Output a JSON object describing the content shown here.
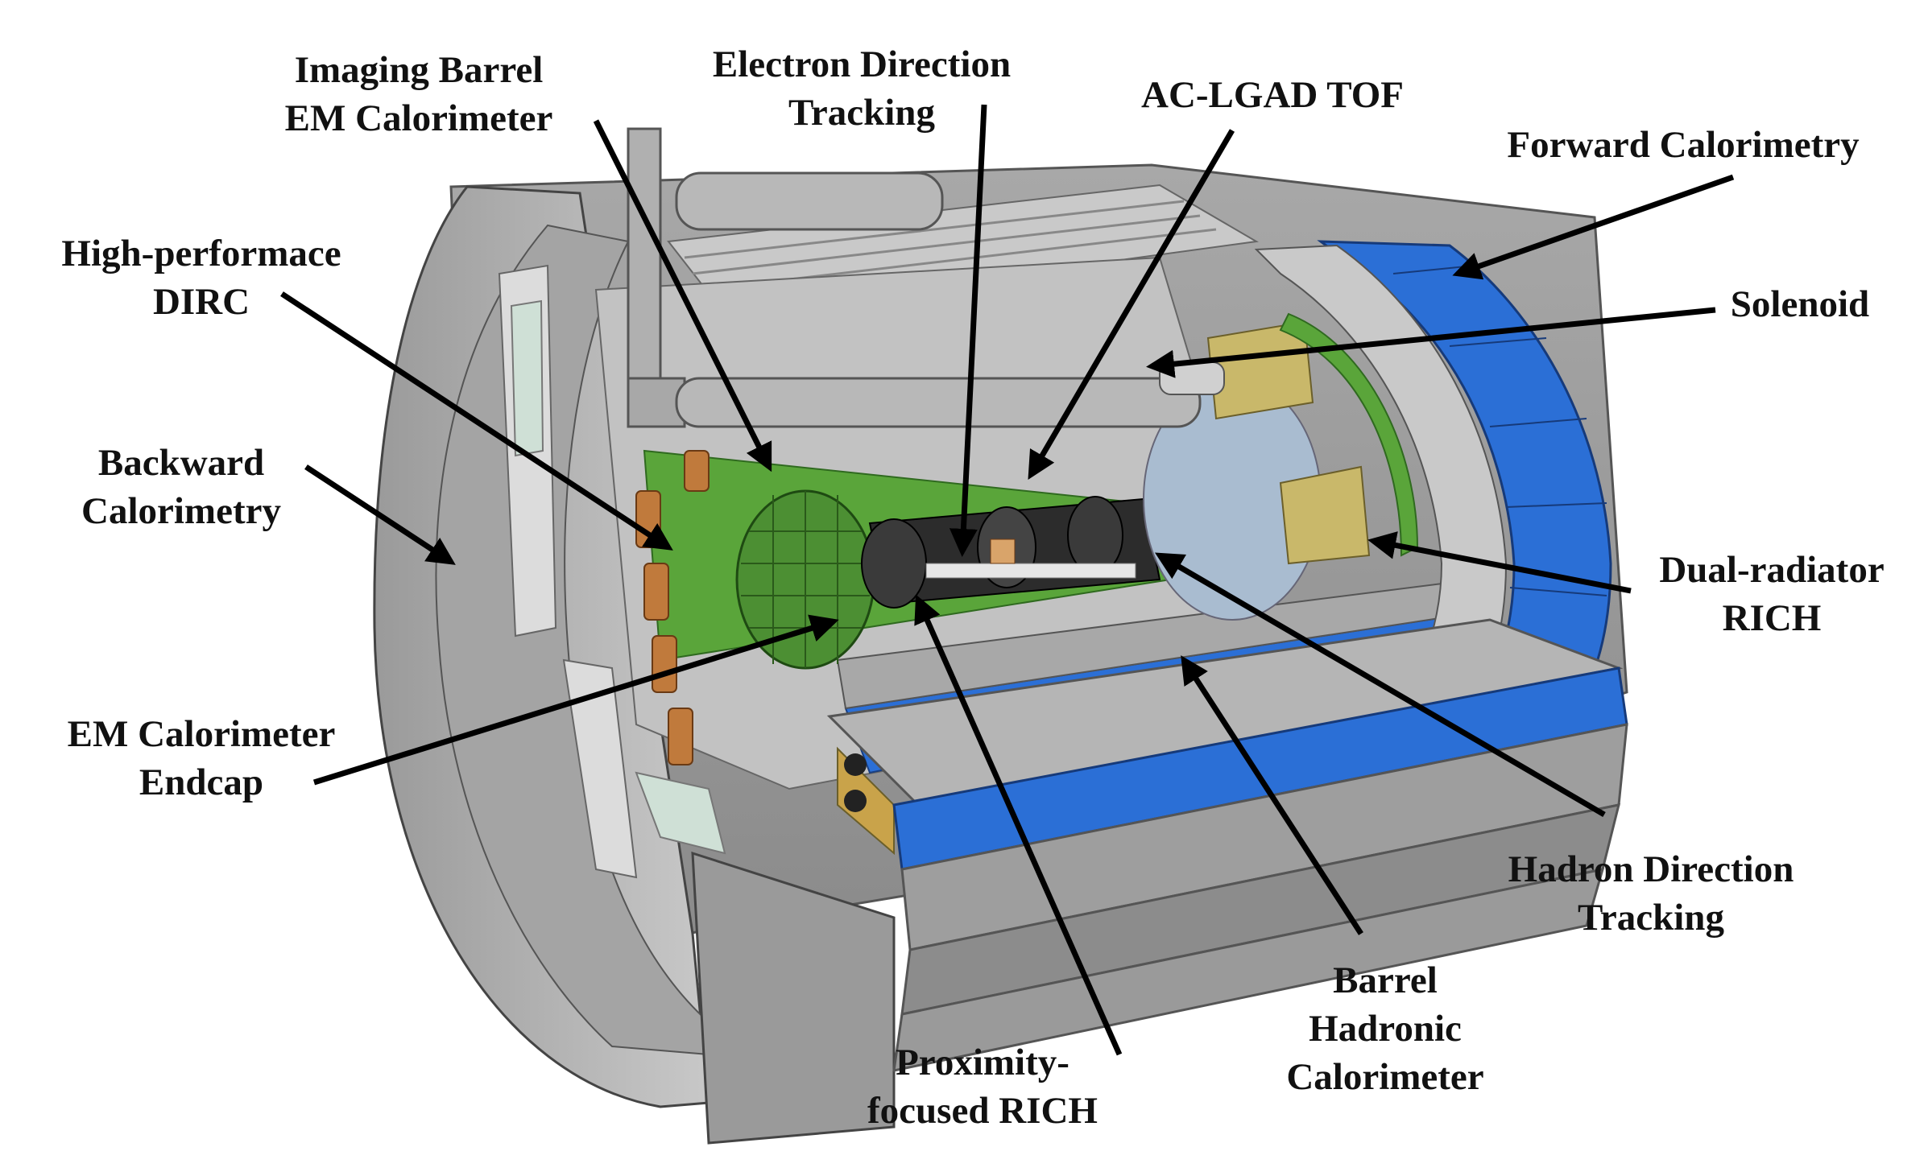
{
  "labels": {
    "imaging_barrel": [
      "Imaging Barrel",
      "EM Calorimeter"
    ],
    "electron_tracking": [
      "Electron Direction",
      "Tracking"
    ],
    "ac_lgad": [
      "AC-LGAD TOF"
    ],
    "forward_cal": [
      "Forward Calorimetry"
    ],
    "dirc": [
      "High-performace",
      "DIRC"
    ],
    "solenoid": [
      "Solenoid"
    ],
    "backward_cal": [
      "Backward",
      "Calorimetry"
    ],
    "dual_rich": [
      "Dual-radiator",
      "RICH"
    ],
    "em_endcap": [
      "EM Calorimeter",
      "Endcap"
    ],
    "hadron_tracking": [
      "Hadron Direction",
      "Tracking"
    ],
    "barrel_hadronic": [
      "Barrel",
      "Hadronic",
      "Calorimeter"
    ],
    "proximity_rich": [
      "Proximity-",
      "focused RICH"
    ]
  },
  "colors": {
    "steel": "#8f8f8f",
    "steel_light": "#b9b9b9",
    "steel_dark": "#5e5e5e",
    "blue": "#2b6fd6",
    "green": "#5aa53a",
    "copper": "#c07a3c",
    "gold": "#c9b86a",
    "pale_blue": "#a9bcd0"
  }
}
